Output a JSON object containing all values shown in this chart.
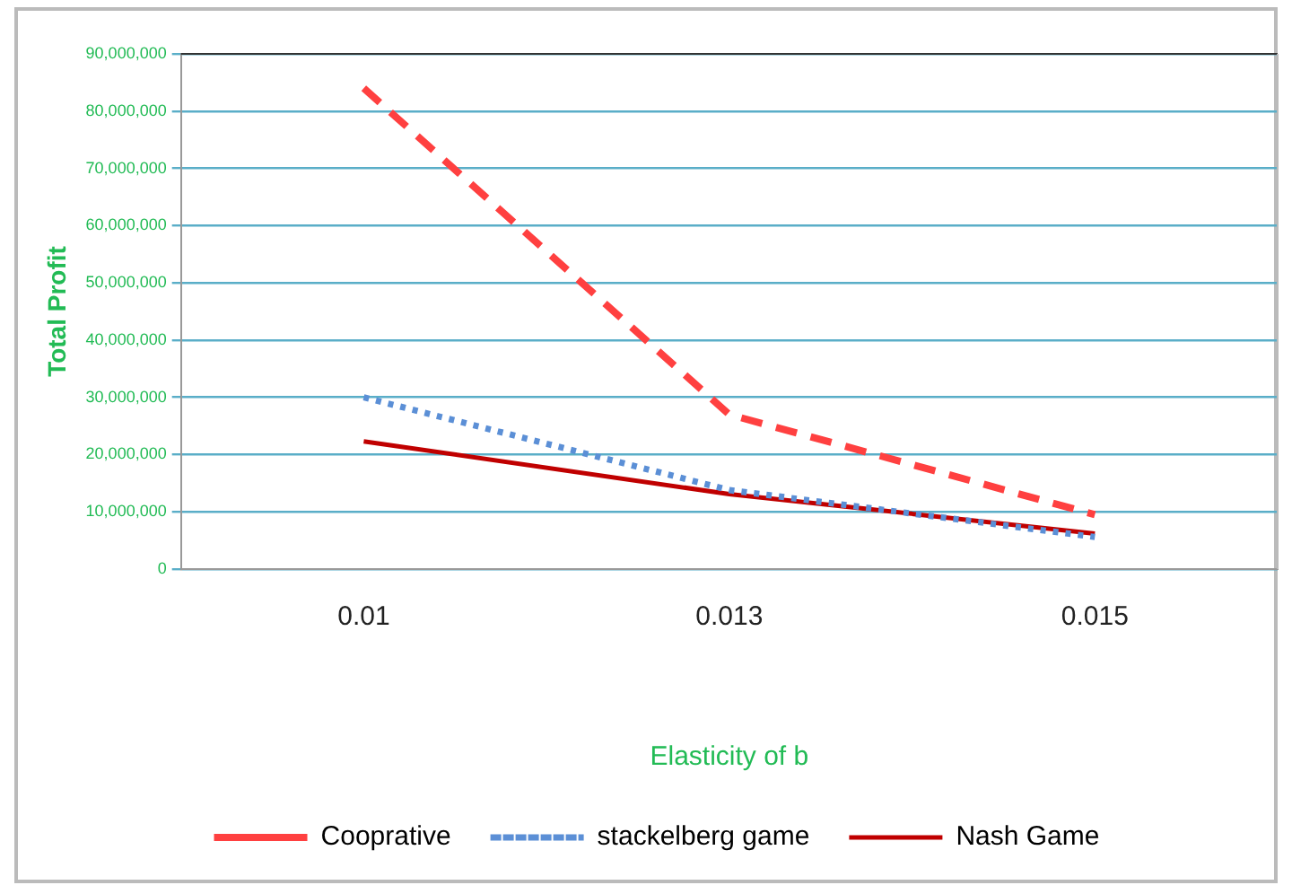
{
  "chart_data": {
    "type": "line",
    "xlabel": "Elasticity of b",
    "ylabel": "Total Profit",
    "categories": [
      "0.01",
      "0.013",
      "0.015"
    ],
    "series": [
      {
        "name": "Cooprative",
        "color": "#ff4040",
        "line_style": "dashed",
        "values": [
          84000000,
          27000000,
          9500000
        ]
      },
      {
        "name": "stackelberg game",
        "color": "#5b8fd6",
        "line_style": "dotted",
        "values": [
          30000000,
          13800000,
          5600000
        ]
      },
      {
        "name": "Nash Game",
        "color": "#c00000",
        "line_style": "solid",
        "values": [
          22300000,
          13100000,
          6200000
        ]
      }
    ],
    "ylim": [
      0,
      90000000
    ],
    "yticks": [
      {
        "value": 0,
        "label": "0"
      },
      {
        "value": 10000000,
        "label": "10,000,000"
      },
      {
        "value": 20000000,
        "label": "20,000,000"
      },
      {
        "value": 30000000,
        "label": "30,000,000"
      },
      {
        "value": 40000000,
        "label": "40,000,000"
      },
      {
        "value": 50000000,
        "label": "50,000,000"
      },
      {
        "value": 60000000,
        "label": "60,000,000"
      },
      {
        "value": 70000000,
        "label": "70,000,000"
      },
      {
        "value": 80000000,
        "label": "80,000,000"
      },
      {
        "value": 90000000,
        "label": "90,000,000"
      }
    ],
    "grid": "y",
    "legend": "bottom",
    "marker": "none"
  }
}
